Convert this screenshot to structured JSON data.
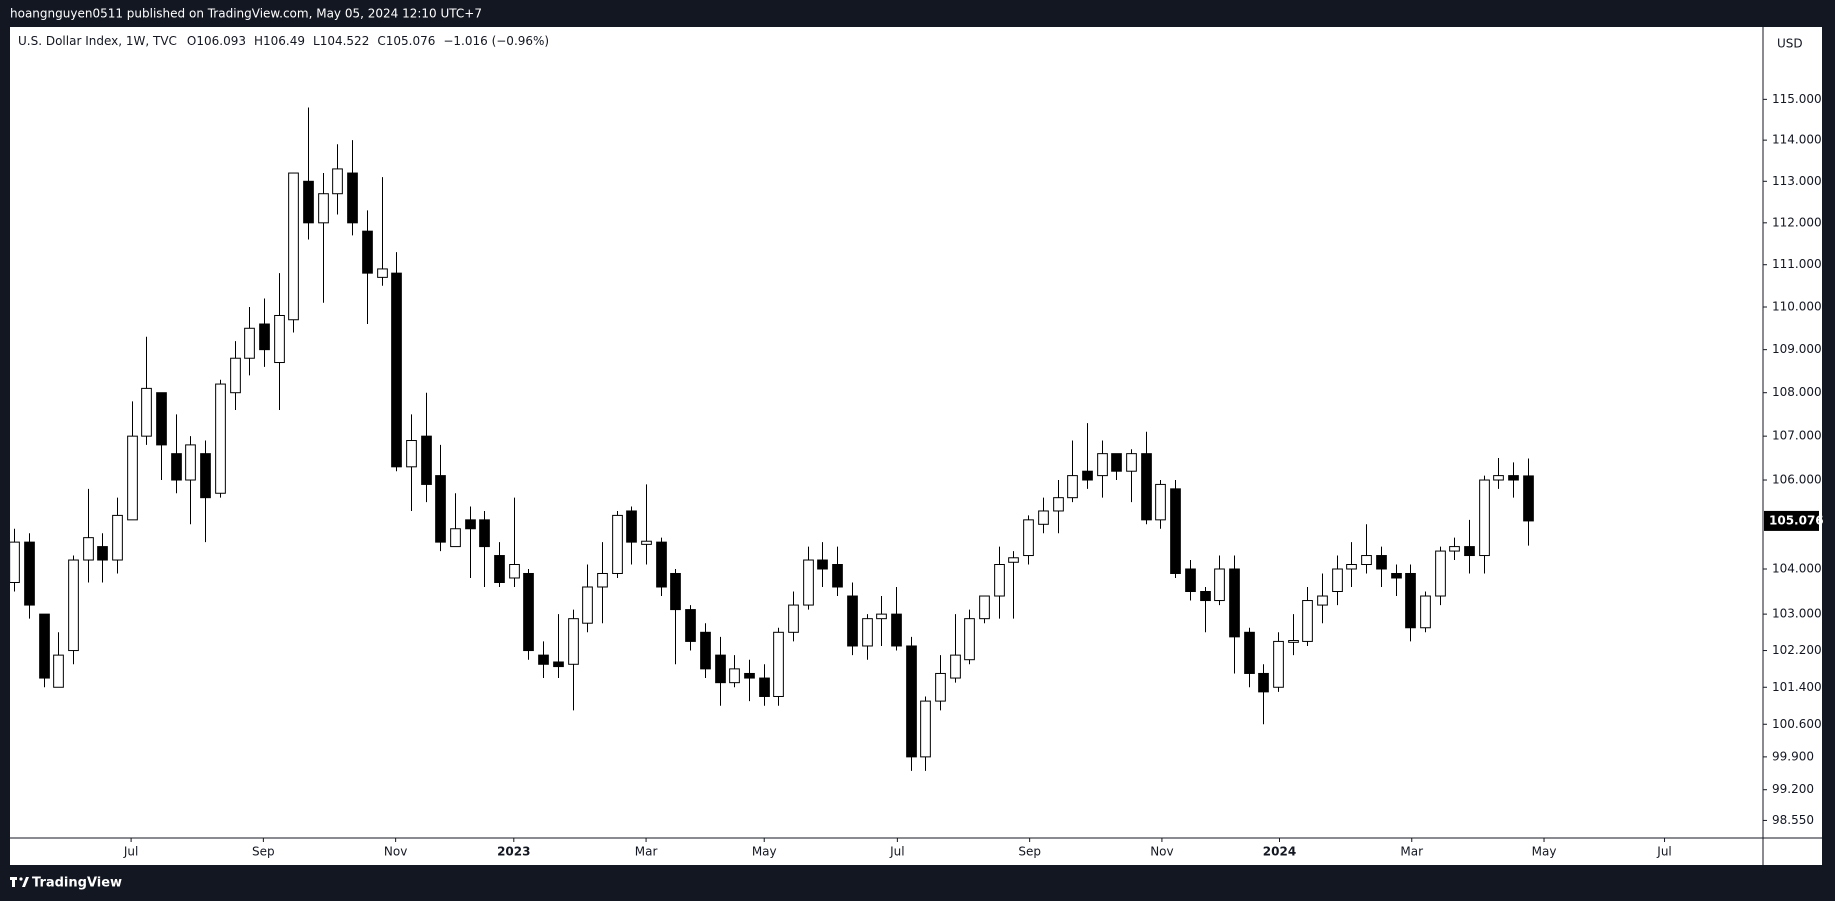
{
  "header": {
    "published": "hoangnguyen0511 published on TradingView.com, May 05, 2024 12:10 UTC+7"
  },
  "footer": {
    "brand": "TradingView"
  },
  "chart_data": {
    "type": "candlestick",
    "symbol": "U.S. Dollar Index, 1W, TVC",
    "ohlc_prefixes": [
      "O",
      "H",
      "L",
      "C"
    ],
    "change": "−1.016 (−0.96%)",
    "currency": "USD",
    "log": true,
    "up_color": "#ffffff",
    "down_color": "#000000",
    "border_color": "#000000",
    "open": [
      103.7,
      104.6,
      103.0,
      101.4,
      102.2,
      104.2,
      104.5,
      104.2,
      105.1,
      107.0,
      108.0,
      106.6,
      106.0,
      106.6,
      105.7,
      108.0,
      108.8,
      109.6,
      108.7,
      109.7,
      113.0,
      112.0,
      112.7,
      113.2,
      111.8,
      110.7,
      110.8,
      106.3,
      107.0,
      106.1,
      104.5,
      105.1,
      105.1,
      104.3,
      103.8,
      103.9,
      102.1,
      101.95,
      101.9,
      102.8,
      103.6,
      103.9,
      105.3,
      104.55,
      104.6,
      103.9,
      103.1,
      102.6,
      102.1,
      101.5,
      101.7,
      101.6,
      101.2,
      102.6,
      103.2,
      104.2,
      104.1,
      103.4,
      102.3,
      102.9,
      103.0,
      102.3,
      99.9,
      101.1,
      101.6,
      102.0,
      102.9,
      103.4,
      104.15,
      104.3,
      105.0,
      105.3,
      105.6,
      106.2,
      106.1,
      106.6,
      106.2,
      106.6,
      105.1,
      105.8,
      104.0,
      103.5,
      103.3,
      104.0,
      102.6,
      101.7,
      101.4,
      102.38,
      102.4,
      103.2,
      103.5,
      104.0,
      104.1,
      104.3,
      103.9,
      103.9,
      102.7,
      103.4,
      104.4,
      104.5,
      104.3,
      106.0,
      106.1,
      106.093
    ],
    "high": [
      104.9,
      104.8,
      103.0,
      102.6,
      104.3,
      105.8,
      104.8,
      105.6,
      107.8,
      109.3,
      108.0,
      107.5,
      107.0,
      106.9,
      108.3,
      109.2,
      110.0,
      110.2,
      110.8,
      113.2,
      114.8,
      113.2,
      113.9,
      114.0,
      112.3,
      113.1,
      111.3,
      107.5,
      108.0,
      106.8,
      105.7,
      105.4,
      105.3,
      104.6,
      105.6,
      104.0,
      102.4,
      103.0,
      103.1,
      104.1,
      104.6,
      105.3,
      105.4,
      105.9,
      104.7,
      104.0,
      103.2,
      102.8,
      102.5,
      102.1,
      102.0,
      101.9,
      102.7,
      103.5,
      104.5,
      104.6,
      104.5,
      103.7,
      103.0,
      103.4,
      103.6,
      102.5,
      101.2,
      102.1,
      103.0,
      103.1,
      103.4,
      104.5,
      104.4,
      105.2,
      105.6,
      106.0,
      106.9,
      107.3,
      106.9,
      106.6,
      106.7,
      107.1,
      106.0,
      106.0,
      104.2,
      103.6,
      104.3,
      104.3,
      102.7,
      101.9,
      102.6,
      103.0,
      103.6,
      103.9,
      104.3,
      104.6,
      105.0,
      104.5,
      104.1,
      104.1,
      103.5,
      104.5,
      104.7,
      105.1,
      106.1,
      106.5,
      106.4,
      106.49
    ],
    "low": [
      103.5,
      102.9,
      101.4,
      101.4,
      101.9,
      103.7,
      103.7,
      103.9,
      105.1,
      106.8,
      106.0,
      105.7,
      105.0,
      104.6,
      105.6,
      107.6,
      108.4,
      108.6,
      107.6,
      109.4,
      111.6,
      110.1,
      112.2,
      111.7,
      109.6,
      110.5,
      106.2,
      105.3,
      105.5,
      104.4,
      104.5,
      103.8,
      103.6,
      103.6,
      103.6,
      102.0,
      101.6,
      101.6,
      100.9,
      102.6,
      102.8,
      103.8,
      104.1,
      104.1,
      103.4,
      101.9,
      102.2,
      101.6,
      101.0,
      101.4,
      101.1,
      101.0,
      101.0,
      102.4,
      103.1,
      103.6,
      103.4,
      102.1,
      102.0,
      102.3,
      102.2,
      99.6,
      99.6,
      100.9,
      101.5,
      101.9,
      102.8,
      102.9,
      102.9,
      104.1,
      104.8,
      104.8,
      105.5,
      105.8,
      105.6,
      106.0,
      105.5,
      105.0,
      104.9,
      103.8,
      103.3,
      102.6,
      103.2,
      101.7,
      101.4,
      100.6,
      101.3,
      102.1,
      102.3,
      102.8,
      103.2,
      103.6,
      103.9,
      103.6,
      103.4,
      102.4,
      102.6,
      103.2,
      104.2,
      103.9,
      103.9,
      105.8,
      105.6,
      104.522
    ],
    "close": [
      104.6,
      103.2,
      101.6,
      102.1,
      104.2,
      104.7,
      104.2,
      105.2,
      107.0,
      108.1,
      106.8,
      106.0,
      106.8,
      105.6,
      108.2,
      108.8,
      109.5,
      109.0,
      109.8,
      113.2,
      112.0,
      112.7,
      113.3,
      112.0,
      110.8,
      110.9,
      106.3,
      106.9,
      105.9,
      104.6,
      104.9,
      104.9,
      104.5,
      103.7,
      104.1,
      102.2,
      101.9,
      101.85,
      102.9,
      103.6,
      103.9,
      105.2,
      104.6,
      104.62,
      103.6,
      103.1,
      102.4,
      101.8,
      101.5,
      101.8,
      101.6,
      101.2,
      102.6,
      103.2,
      104.2,
      104.0,
      103.6,
      102.3,
      102.9,
      103.0,
      102.3,
      99.9,
      101.1,
      101.7,
      102.1,
      102.9,
      103.4,
      104.1,
      104.25,
      105.1,
      105.3,
      105.6,
      106.1,
      106.0,
      106.6,
      106.2,
      106.6,
      105.1,
      105.9,
      103.9,
      103.5,
      103.3,
      104.0,
      102.5,
      101.7,
      101.3,
      102.4,
      102.42,
      103.3,
      103.4,
      104.0,
      104.1,
      104.3,
      104.0,
      103.8,
      102.7,
      103.4,
      104.4,
      104.5,
      104.3,
      106.0,
      106.1,
      106.0,
      105.076
    ],
    "xlim": [
      -0.28,
      119.0
    ],
    "xticks": [
      {
        "value": 7.96,
        "label": "Jul"
      },
      {
        "value": 16.96,
        "label": "Sep"
      },
      {
        "value": 25.96,
        "label": "Nov"
      },
      {
        "value": 34.0,
        "label": "2023"
      },
      {
        "value": 43.0,
        "label": "Mar"
      },
      {
        "value": 51.04,
        "label": "May"
      },
      {
        "value": 60.1,
        "label": "Jul"
      },
      {
        "value": 69.1,
        "label": "Sep"
      },
      {
        "value": 78.1,
        "label": "Nov"
      },
      {
        "value": 86.1,
        "label": "2024"
      },
      {
        "value": 95.1,
        "label": "Mar"
      },
      {
        "value": 104.1,
        "label": "May"
      },
      {
        "value": 112.3,
        "label": "Jul"
      }
    ],
    "ylim": [
      98.18,
      116.77
    ],
    "yticks": [
      {
        "value": 115,
        "label": "115.000"
      },
      {
        "value": 114,
        "label": "114.000"
      },
      {
        "value": 113,
        "label": "113.000"
      },
      {
        "value": 112,
        "label": "112.000"
      },
      {
        "value": 111,
        "label": "111.000"
      },
      {
        "value": 110,
        "label": "110.000"
      },
      {
        "value": 109,
        "label": "109.000"
      },
      {
        "value": 108,
        "label": "108.000"
      },
      {
        "value": 107,
        "label": "107.000"
      },
      {
        "value": 106,
        "label": "106.000"
      },
      {
        "value": 104,
        "label": "104.000"
      },
      {
        "value": 103,
        "label": "103.000"
      },
      {
        "value": 102.2,
        "label": "102.200"
      },
      {
        "value": 101.4,
        "label": "101.400"
      },
      {
        "value": 100.6,
        "label": "100.600"
      },
      {
        "value": 99.9,
        "label": "99.900"
      },
      {
        "value": 99.2,
        "label": "99.200"
      },
      {
        "value": 98.55,
        "label": "98.550"
      }
    ],
    "grid": false
  }
}
